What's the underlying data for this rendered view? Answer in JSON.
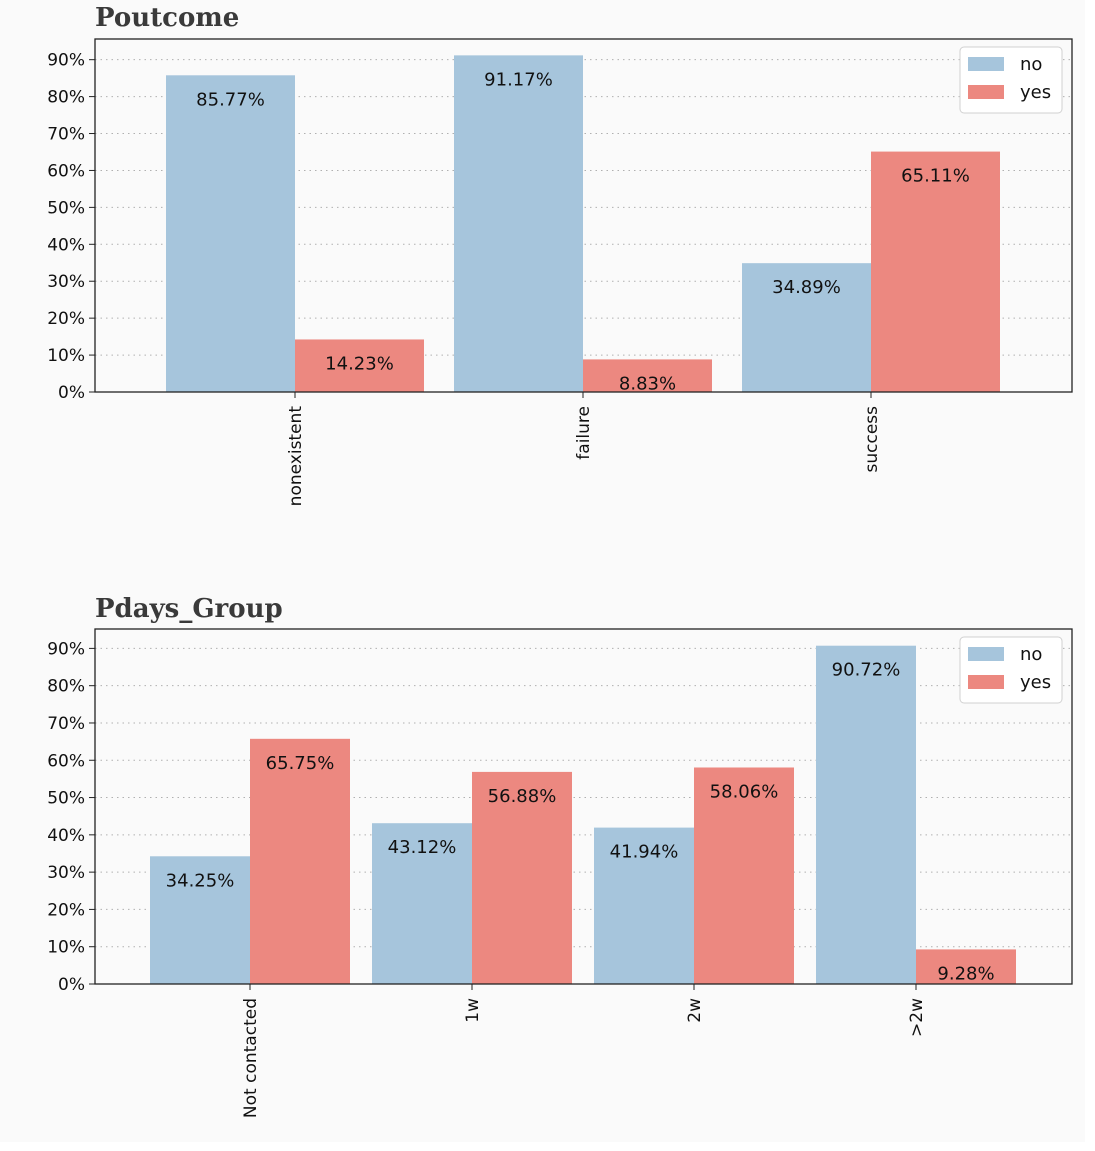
{
  "colors": {
    "no": "#a6c5dc",
    "yes": "#ec8880",
    "axis": "#222222",
    "grid": "#b0b0b0"
  },
  "chart_data": [
    {
      "type": "bar",
      "title": "Poutcome",
      "categories": [
        "nonexistent",
        "failure",
        "success"
      ],
      "series": [
        {
          "name": "no",
          "values": [
            85.77,
            91.17,
            34.89
          ]
        },
        {
          "name": "yes",
          "values": [
            14.23,
            8.83,
            65.11
          ]
        }
      ],
      "data_labels": {
        "no": [
          "85.77%",
          "91.17%",
          "34.89%"
        ],
        "yes": [
          "14.23%",
          "8.83%",
          "65.11%"
        ]
      },
      "yticks": [
        "0%",
        "10%",
        "20%",
        "30%",
        "40%",
        "50%",
        "60%",
        "70%",
        "80%",
        "90%"
      ],
      "ylim": [
        0,
        95.6
      ],
      "legend": [
        "no",
        "yes"
      ],
      "legend_position": "top-right",
      "grid": true
    },
    {
      "type": "bar",
      "title": "Pdays_Group",
      "categories": [
        "Not contacted",
        "1w",
        "2w",
        ">2w"
      ],
      "series": [
        {
          "name": "no",
          "values": [
            34.25,
            43.12,
            41.94,
            90.72
          ]
        },
        {
          "name": "yes",
          "values": [
            65.75,
            56.88,
            58.06,
            9.28
          ]
        }
      ],
      "data_labels": {
        "no": [
          "34.25%",
          "43.12%",
          "41.94%",
          "90.72%"
        ],
        "yes": [
          "65.75%",
          "56.88%",
          "58.06%",
          "9.28%"
        ]
      },
      "yticks": [
        "0%",
        "10%",
        "20%",
        "30%",
        "40%",
        "50%",
        "60%",
        "70%",
        "80%",
        "90%"
      ],
      "ylim": [
        0,
        95.2
      ],
      "legend": [
        "no",
        "yes"
      ],
      "legend_position": "top-right",
      "grid": true
    }
  ]
}
